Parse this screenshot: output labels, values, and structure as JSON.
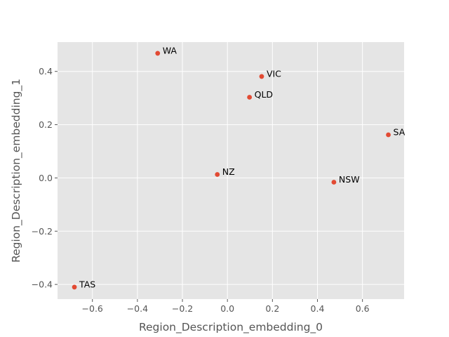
{
  "chart_data": {
    "type": "scatter",
    "xlabel": "Region_Description_embedding_0",
    "ylabel": "Region_Description_embedding_1",
    "xlim": [
      -0.755,
      0.785
    ],
    "ylim": [
      -0.455,
      0.51
    ],
    "xticks": [
      -0.6,
      -0.4,
      -0.2,
      0.0,
      0.2,
      0.4,
      0.6
    ],
    "xtick_labels": [
      "−0.6",
      "−0.4",
      "−0.2",
      "0.0",
      "0.2",
      "0.4",
      "0.6"
    ],
    "yticks": [
      -0.4,
      -0.2,
      0.0,
      0.2,
      0.4
    ],
    "ytick_labels": [
      "−0.4",
      "−0.2",
      "0.0",
      "0.2",
      "0.4"
    ],
    "grid": true,
    "style": {
      "background": "#e5e5e5",
      "grid_color": "#ffffff",
      "point_color": "#e24a33",
      "tick_color": "#555555"
    },
    "points": [
      {
        "label": "WA",
        "x": -0.31,
        "y": 0.468
      },
      {
        "label": "VIC",
        "x": 0.152,
        "y": 0.381
      },
      {
        "label": "QLD",
        "x": 0.098,
        "y": 0.303
      },
      {
        "label": "SA",
        "x": 0.715,
        "y": 0.162
      },
      {
        "label": "NZ",
        "x": -0.045,
        "y": 0.013
      },
      {
        "label": "NSW",
        "x": 0.473,
        "y": -0.016
      },
      {
        "label": "TAS",
        "x": -0.68,
        "y": -0.41
      }
    ]
  }
}
